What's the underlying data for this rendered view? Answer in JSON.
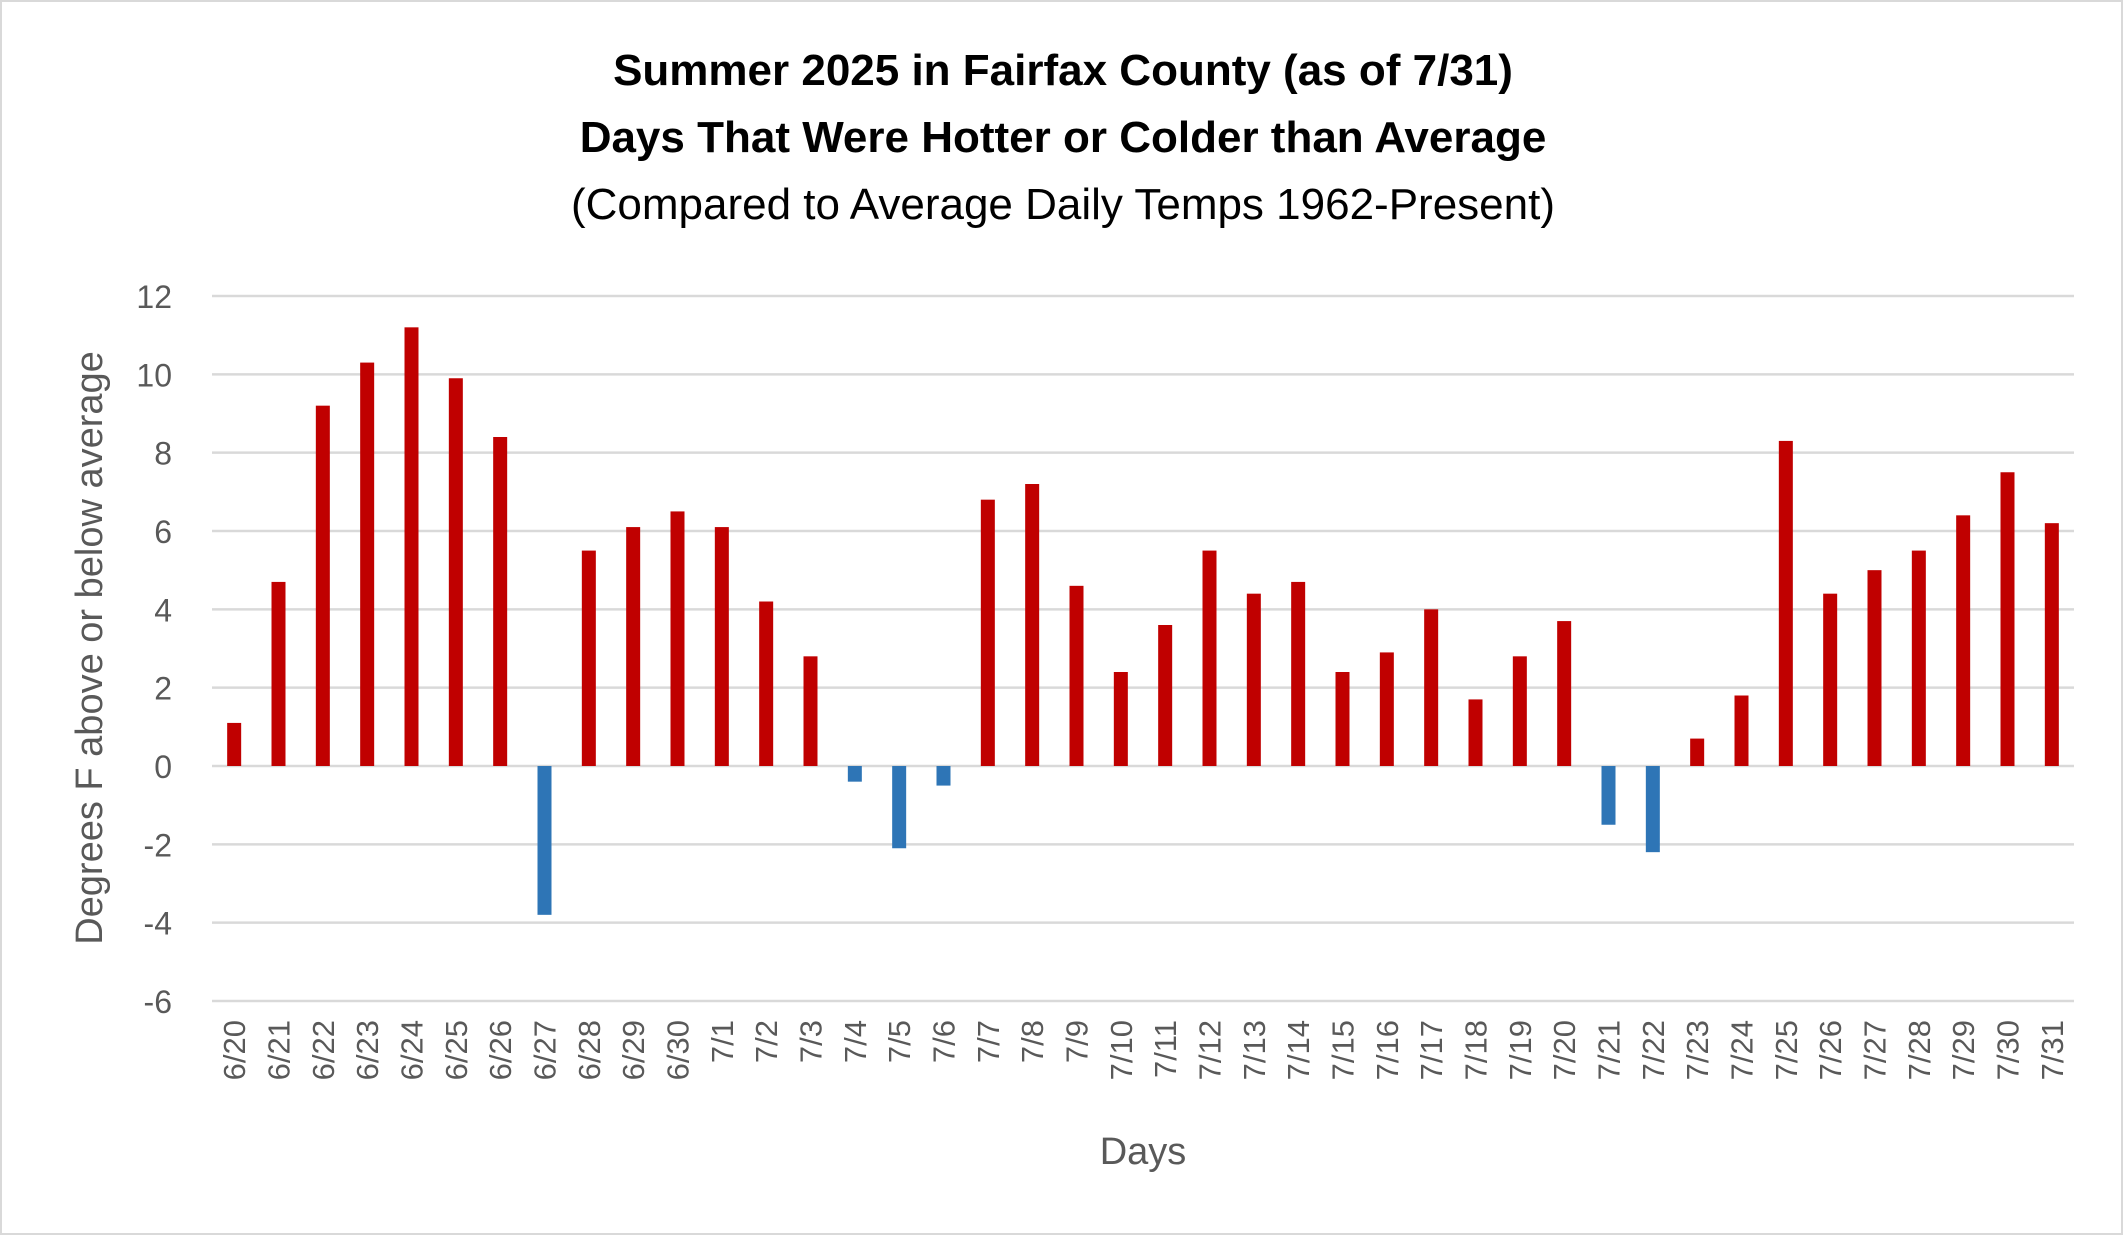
{
  "chart_data": {
    "type": "bar",
    "title": [
      "Summer 2025 in Fairfax County (as of 7/31)",
      "Days That Were Hotter or Colder than Average"
    ],
    "subtitle": "(Compared to Average Daily Temps 1962-Present)",
    "xlabel": "Days",
    "ylabel": "Degrees F above or below average",
    "ylim": [
      -6,
      12
    ],
    "yticks": [
      12,
      10,
      8,
      6,
      4,
      2,
      0,
      -2,
      -4,
      -6
    ],
    "grid": true,
    "legend": "none",
    "colors": {
      "positive": "#C00000",
      "negative": "#2E75B6",
      "grid": "#D9D9D9",
      "text": "#595959"
    },
    "categories": [
      "6/20",
      "6/21",
      "6/22",
      "6/23",
      "6/24",
      "6/25",
      "6/26",
      "6/27",
      "6/28",
      "6/29",
      "6/30",
      "7/1",
      "7/2",
      "7/3",
      "7/4",
      "7/5",
      "7/6",
      "7/7",
      "7/8",
      "7/9",
      "7/10",
      "7/11",
      "7/12",
      "7/13",
      "7/14",
      "7/15",
      "7/16",
      "7/17",
      "7/18",
      "7/19",
      "7/20",
      "7/21",
      "7/22",
      "7/23",
      "7/24",
      "7/25",
      "7/26",
      "7/27",
      "7/28",
      "7/29",
      "7/30",
      "7/31"
    ],
    "values": [
      1.1,
      4.7,
      9.2,
      10.3,
      11.2,
      9.9,
      8.4,
      -3.8,
      5.5,
      6.1,
      6.5,
      6.1,
      4.2,
      2.8,
      -0.4,
      -2.1,
      -0.5,
      6.8,
      7.2,
      4.6,
      2.4,
      3.6,
      5.5,
      4.4,
      4.7,
      2.4,
      2.9,
      4.0,
      1.7,
      2.8,
      3.7,
      -1.5,
      -2.2,
      0.7,
      1.8,
      8.3,
      4.4,
      5.0,
      5.5,
      6.4,
      7.5,
      6.2
    ]
  }
}
